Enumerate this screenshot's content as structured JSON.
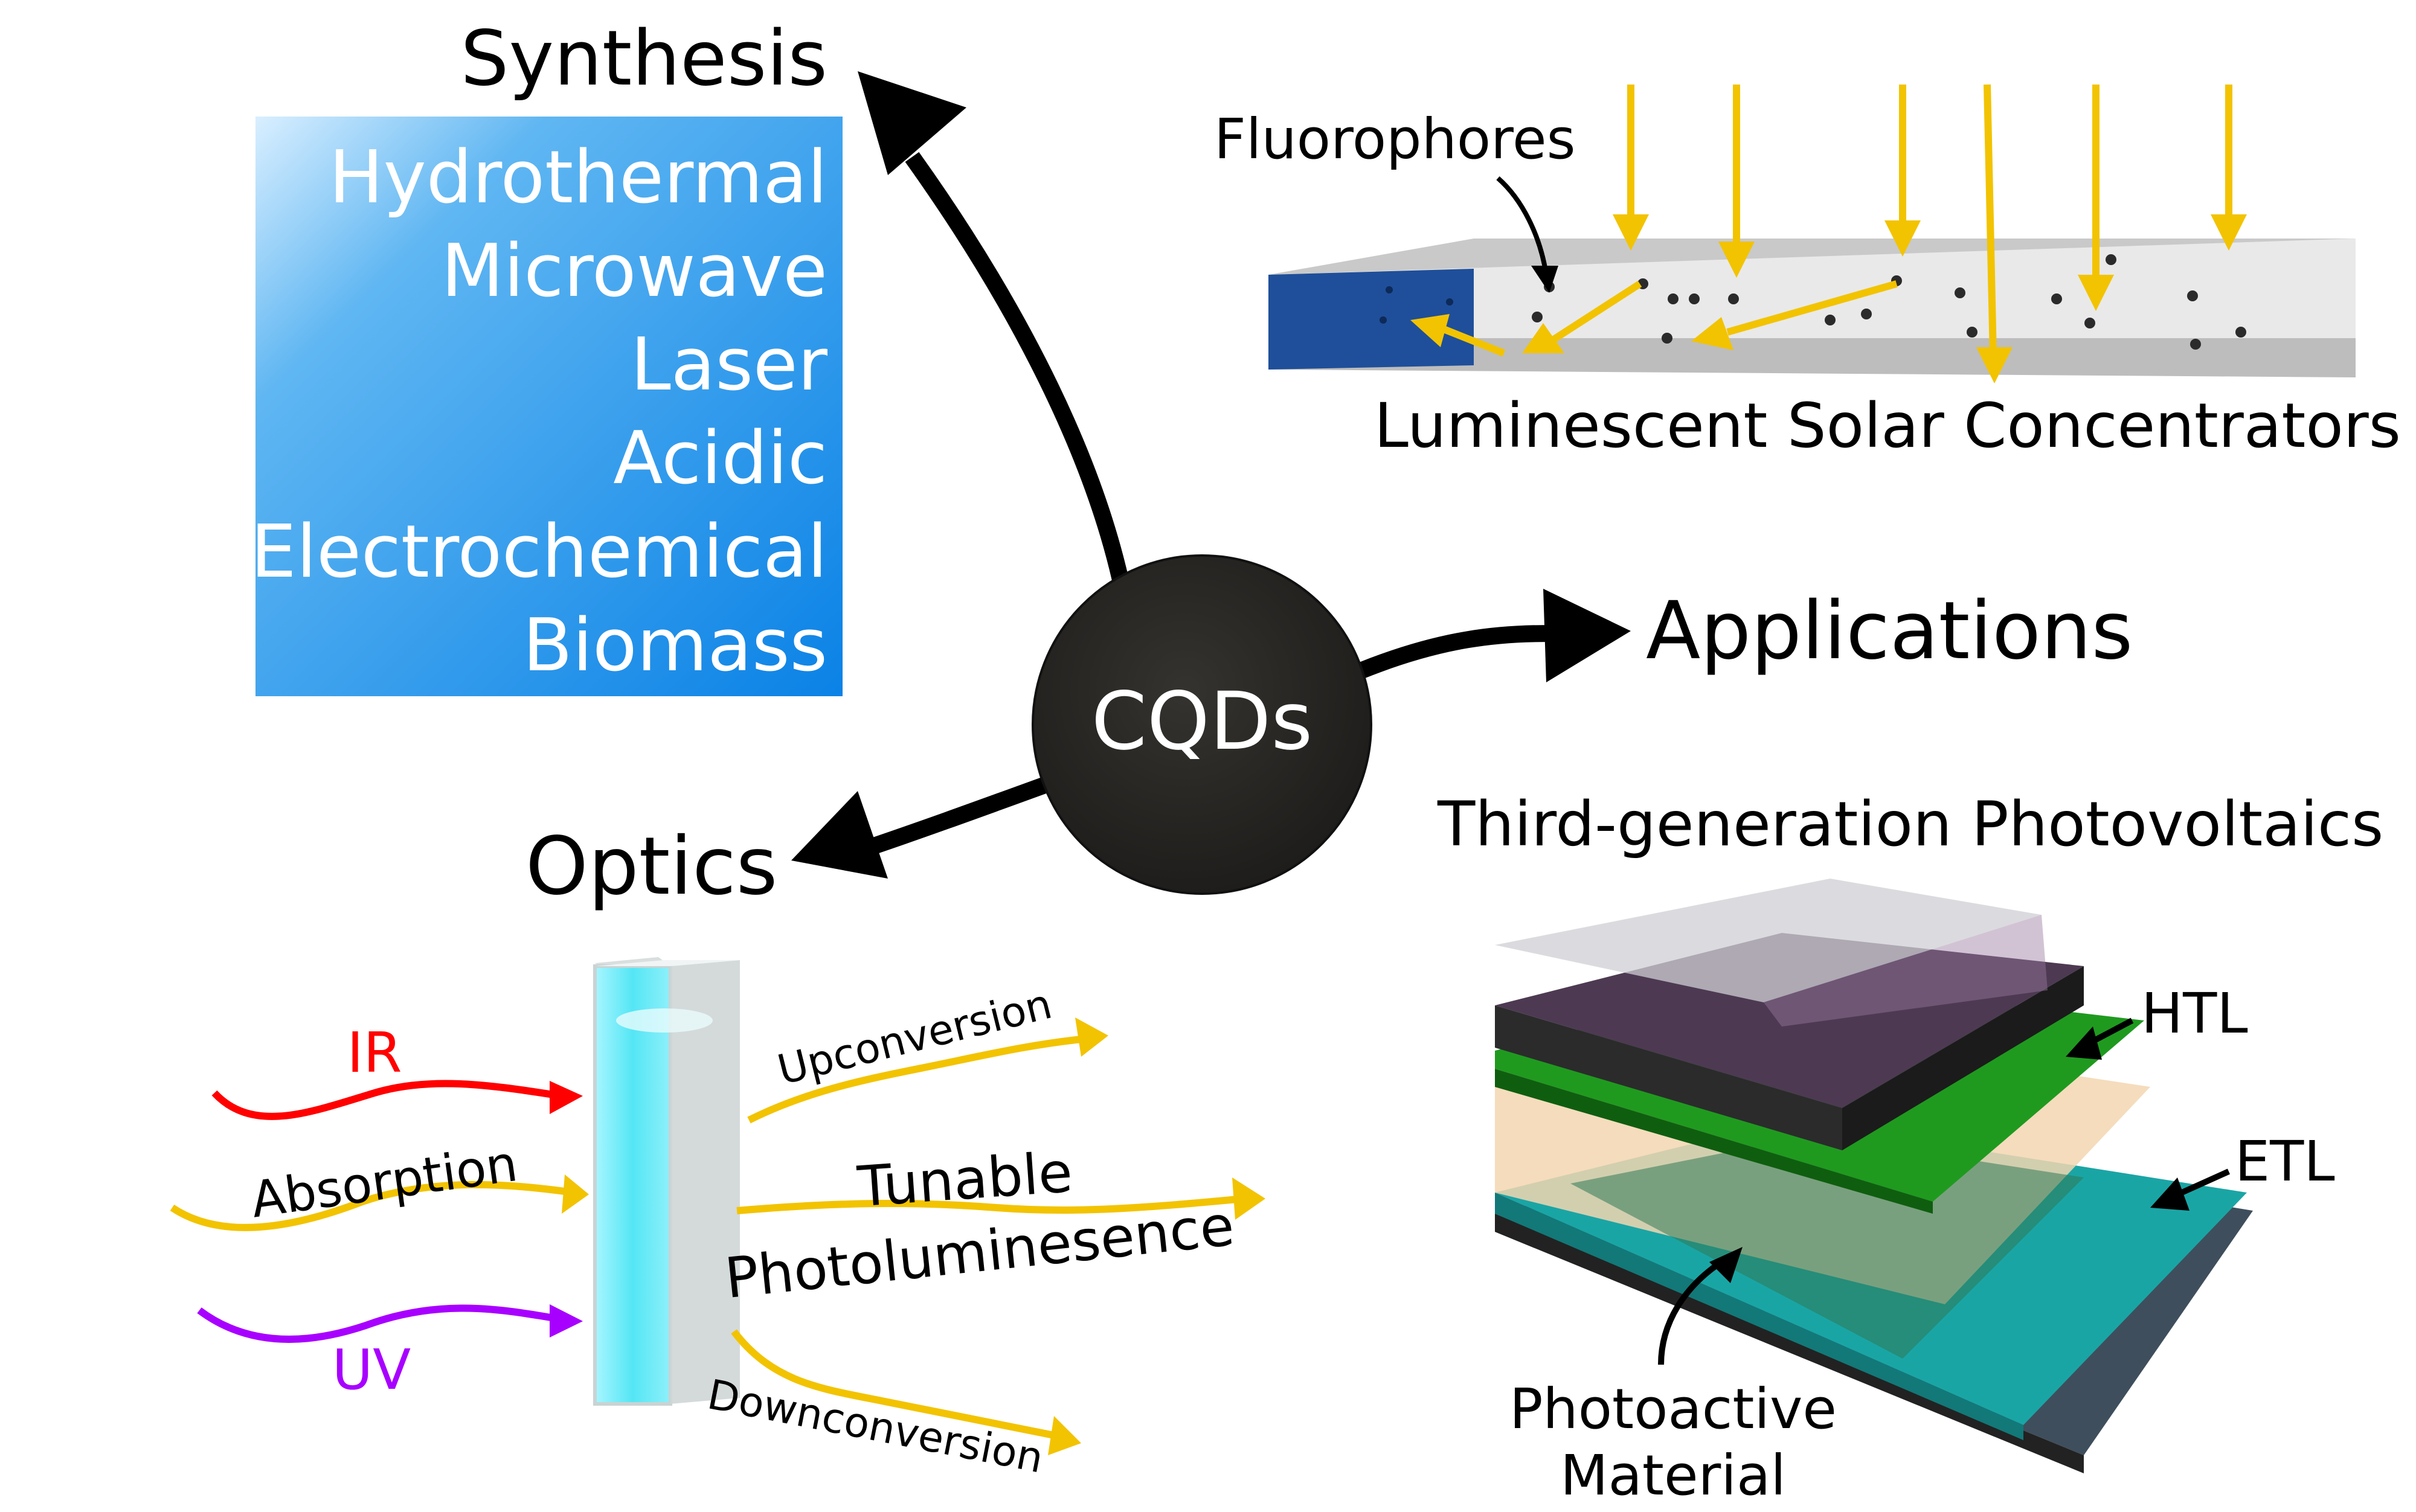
{
  "center": {
    "label": "CQDs"
  },
  "synthesis": {
    "title": "Synthesis",
    "methods": [
      "Hydrothermal",
      "Microwave",
      "Laser",
      "Acidic",
      "Electrochemical",
      "Biomass"
    ]
  },
  "applications": {
    "title": "Applications",
    "lsc": {
      "fluorophores_label": "Fluorophores",
      "caption": "Luminescent Solar Concentrators"
    },
    "pv": {
      "title": "Third-generation Photovoltaics",
      "htl": "HTL",
      "etl": "ETL",
      "photoactive_line1": "Photoactive",
      "photoactive_line2": "Material"
    }
  },
  "optics": {
    "title": "Optics",
    "ir": "IR",
    "absorption": "Absorption",
    "uv": "UV",
    "upconversion": "Upconversion",
    "tunable_line1": "Tunable",
    "tunable_line2": "Photoluminesence",
    "downconversion": "Downconversion"
  },
  "colors": {
    "yellow": "#f2c300",
    "ir_red": "#ff0000",
    "uv_purple": "#a800ff",
    "synthesis_blue": "#0a82e6",
    "center_fill": "#2a2926",
    "htl_green": "#1f9a1f",
    "etl_teal": "#1aa5a5"
  }
}
